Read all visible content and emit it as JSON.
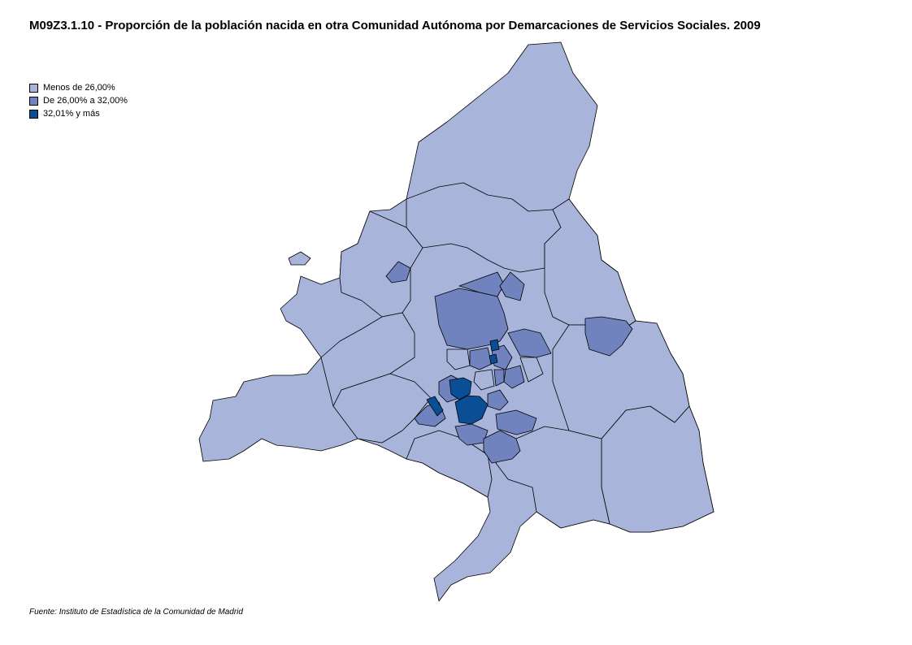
{
  "title": "M09Z3.1.10 - Proporción de la población nacida en otra Comunidad Autónoma por Demarcaciones de Servicios Sociales. 2009",
  "legend": {
    "items": [
      {
        "label": "Menos de 26,00%",
        "color": "#a8b4da"
      },
      {
        "label": "De 26,00% a 32,00%",
        "color": "#7083bf"
      },
      {
        "label": "32,01% y más",
        "color": "#0a4f95"
      }
    ]
  },
  "colors": {
    "low": "#a8b4da",
    "mid": "#7083bf",
    "high": "#0a4f95",
    "border": "#000000"
  },
  "source": "Fuente: Instituto de Estadística de la Comunidad de Madrid"
}
